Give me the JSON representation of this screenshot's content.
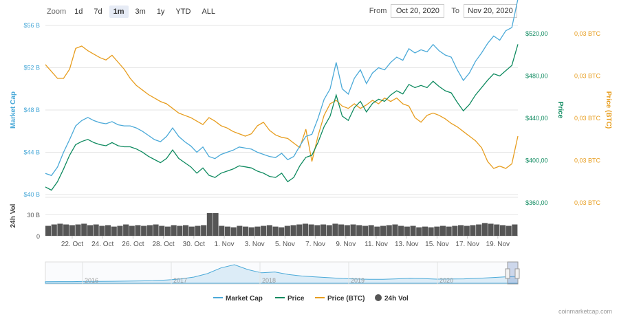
{
  "toolbar": {
    "zoom_label": "Zoom",
    "buttons": [
      "1d",
      "7d",
      "1m",
      "3m",
      "1y",
      "YTD",
      "ALL"
    ],
    "active": "1m"
  },
  "range": {
    "from_label": "From",
    "from_value": "Oct 20, 2020",
    "to_label": "To",
    "to_value": "Nov 20, 2020"
  },
  "watermark": "coinmarketcap.com",
  "colors": {
    "market_cap": "#4aa9d8",
    "price": "#0e8a5f",
    "price_btc": "#e79d1e",
    "volume": "#555555",
    "grid": "#e6e6e6"
  },
  "chart_data": {
    "type": "line",
    "x_ticks": [
      "22. Oct",
      "24. Oct",
      "26. Oct",
      "28. Oct",
      "30. Oct",
      "1. Nov",
      "3. Nov",
      "5. Nov",
      "7. Nov",
      "9. Nov",
      "11. Nov",
      "13. Nov",
      "15. Nov",
      "17. Nov",
      "19. Nov"
    ],
    "x_start": "Oct 20, 2020",
    "x_end": "Nov 20, 2020",
    "axes": {
      "market_cap": {
        "label": "Market Cap",
        "ticks": [
          "$56 B",
          "$52 B",
          "$48 B",
          "$44 B",
          "$40 B"
        ],
        "range": [
          40,
          56
        ]
      },
      "price": {
        "label": "Price",
        "ticks": [
          "$520,00",
          "$480,00",
          "$440,00",
          "$400,00",
          "$360,00"
        ],
        "range": [
          360,
          520
        ]
      },
      "price_btc": {
        "label": "Price (BTC)",
        "ticks": [
          "0,03 BTC",
          "0,03 BTC",
          "0,03 BTC",
          "0,03 BTC",
          "0,03 BTC"
        ]
      },
      "volume": {
        "label": "24h Vol",
        "ticks": [
          "30 B",
          "0"
        ],
        "range": [
          0,
          30
        ]
      }
    },
    "series": [
      {
        "name": "Market Cap",
        "values": [
          42.0,
          41.8,
          42.6,
          44.0,
          45.2,
          46.5,
          47.0,
          47.3,
          47.0,
          46.8,
          46.7,
          46.9,
          46.6,
          46.5,
          46.5,
          46.3,
          46.0,
          45.6,
          45.2,
          45.0,
          45.5,
          46.3,
          45.5,
          45.0,
          44.6,
          44.0,
          44.5,
          43.6,
          43.4,
          43.8,
          44.0,
          44.2,
          44.5,
          44.4,
          44.3,
          44.0,
          43.8,
          43.6,
          43.5,
          43.9,
          43.3,
          43.6,
          44.6,
          45.5,
          45.7,
          47.2,
          49.0,
          50.0,
          52.5,
          50.0,
          49.5,
          51.0,
          51.8,
          50.5,
          51.5,
          52.0,
          51.8,
          52.5,
          53.0,
          52.7,
          53.8,
          53.4,
          53.7,
          53.5,
          54.2,
          53.6,
          53.2,
          53.0,
          51.8,
          50.8,
          51.5,
          52.6,
          53.4,
          54.3,
          55.0,
          54.6,
          55.5,
          55.8,
          58.5
        ]
      },
      {
        "name": "Price",
        "values": [
          375,
          372,
          380,
          392,
          405,
          415,
          418,
          420,
          417,
          415,
          414,
          417,
          414,
          413,
          413,
          411,
          408,
          404,
          401,
          398,
          402,
          410,
          402,
          398,
          394,
          388,
          393,
          386,
          384,
          388,
          390,
          392,
          395,
          394,
          393,
          390,
          388,
          385,
          384,
          388,
          380,
          384,
          395,
          403,
          405,
          417,
          432,
          442,
          462,
          442,
          438,
          450,
          456,
          446,
          454,
          458,
          456,
          462,
          466,
          463,
          472,
          469,
          471,
          469,
          475,
          470,
          466,
          464,
          455,
          447,
          453,
          462,
          469,
          476,
          482,
          480,
          485,
          490,
          510
        ]
      },
      {
        "name": "Price (BTC)",
        "values": [
          0.0334,
          0.0328,
          0.0322,
          0.0322,
          0.033,
          0.0348,
          0.035,
          0.0346,
          0.0343,
          0.034,
          0.0338,
          0.0342,
          0.0336,
          0.033,
          0.0322,
          0.0316,
          0.0312,
          0.0308,
          0.0305,
          0.0302,
          0.03,
          0.0296,
          0.0292,
          0.029,
          0.0288,
          0.0285,
          0.0282,
          0.0288,
          0.0285,
          0.0281,
          0.0279,
          0.0276,
          0.0274,
          0.0272,
          0.0274,
          0.0281,
          0.0284,
          0.0277,
          0.0273,
          0.0271,
          0.027,
          0.0266,
          0.0262,
          0.0278,
          0.025,
          0.0272,
          0.029,
          0.03,
          0.0303,
          0.0298,
          0.0296,
          0.03,
          0.0296,
          0.0299,
          0.0303,
          0.03,
          0.0305,
          0.0302,
          0.0305,
          0.03,
          0.0298,
          0.0288,
          0.0284,
          0.029,
          0.0292,
          0.029,
          0.0287,
          0.0283,
          0.028,
          0.0276,
          0.0272,
          0.0268,
          0.0262,
          0.025,
          0.0244,
          0.0246,
          0.0244,
          0.0248,
          0.0272
        ]
      },
      {
        "name": "24h Vol",
        "values": [
          14,
          16,
          17,
          16,
          15,
          16,
          17,
          15,
          16,
          14,
          15,
          13,
          14,
          16,
          14,
          15,
          14,
          15,
          16,
          14,
          13,
          15,
          14,
          15,
          13,
          14,
          15,
          32,
          32,
          14,
          13,
          12,
          14,
          13,
          12,
          13,
          14,
          15,
          13,
          12,
          14,
          15,
          16,
          17,
          16,
          15,
          16,
          15,
          17,
          16,
          15,
          16,
          15,
          14,
          15,
          13,
          14,
          15,
          16,
          14,
          13,
          14,
          12,
          13,
          12,
          13,
          14,
          13,
          14,
          15,
          14,
          15,
          16,
          18,
          17,
          16,
          15,
          14,
          16
        ]
      }
    ],
    "navigator": {
      "x_ticks": [
        "2016",
        "2017",
        "2018",
        "2019",
        "2020"
      ],
      "values": [
        0.5,
        0.6,
        0.6,
        0.7,
        0.7,
        0.8,
        0.9,
        1.0,
        1.2,
        1.6,
        2.2,
        3.4,
        5.5,
        9.0,
        11.0,
        8.0,
        6.0,
        6.5,
        5.0,
        4.0,
        3.5,
        3.0,
        2.5,
        2.2,
        2.0,
        2.0,
        2.3,
        2.6,
        2.4,
        2.1,
        2.2,
        2.3,
        2.6,
        3.0,
        3.5,
        3.8
      ]
    },
    "legend": [
      "Market Cap",
      "Price",
      "Price (BTC)",
      "24h Vol"
    ],
    "legend_position": "bottom"
  }
}
